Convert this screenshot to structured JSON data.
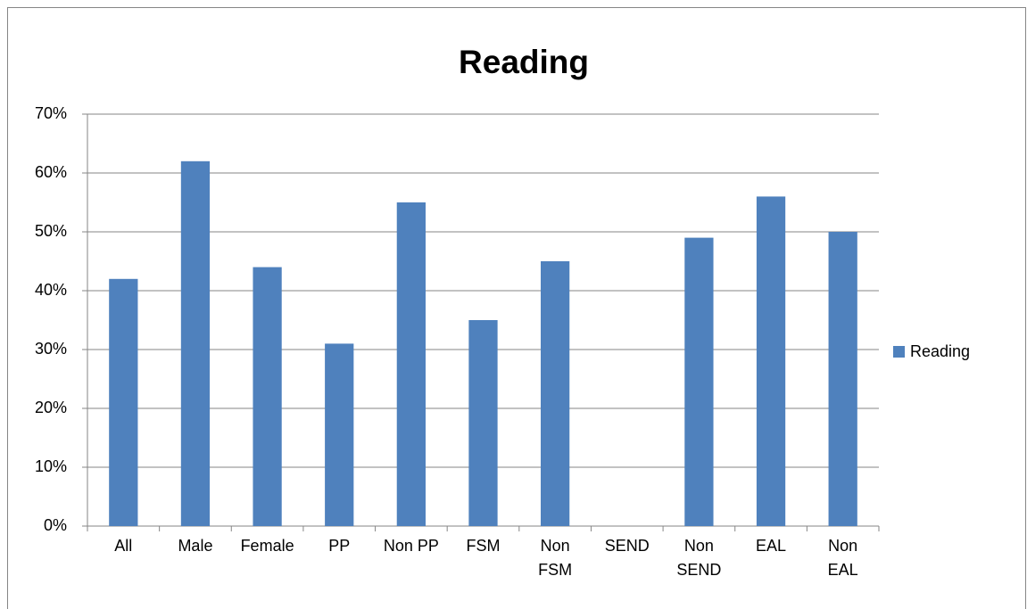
{
  "chart_data": {
    "type": "bar",
    "title": "Reading",
    "categories": [
      "All",
      "Male",
      "Female",
      "PP",
      "Non PP",
      "FSM",
      "Non FSM",
      "SEND",
      "Non SEND",
      "EAL",
      "Non EAL"
    ],
    "series": [
      {
        "name": "Reading",
        "color": "#4f81bd",
        "values": [
          42,
          62,
          44,
          31,
          55,
          35,
          45,
          0,
          49,
          56,
          50
        ]
      }
    ],
    "ylim": [
      0,
      70
    ],
    "yticks": [
      {
        "value": 0,
        "label": "0%"
      },
      {
        "value": 10,
        "label": "10%"
      },
      {
        "value": 20,
        "label": "20%"
      },
      {
        "value": 30,
        "label": "30%"
      },
      {
        "value": 40,
        "label": "40%"
      },
      {
        "value": 50,
        "label": "50%"
      },
      {
        "value": 60,
        "label": "60%"
      },
      {
        "value": 70,
        "label": "70%"
      }
    ],
    "grid": true,
    "legend": "right"
  }
}
